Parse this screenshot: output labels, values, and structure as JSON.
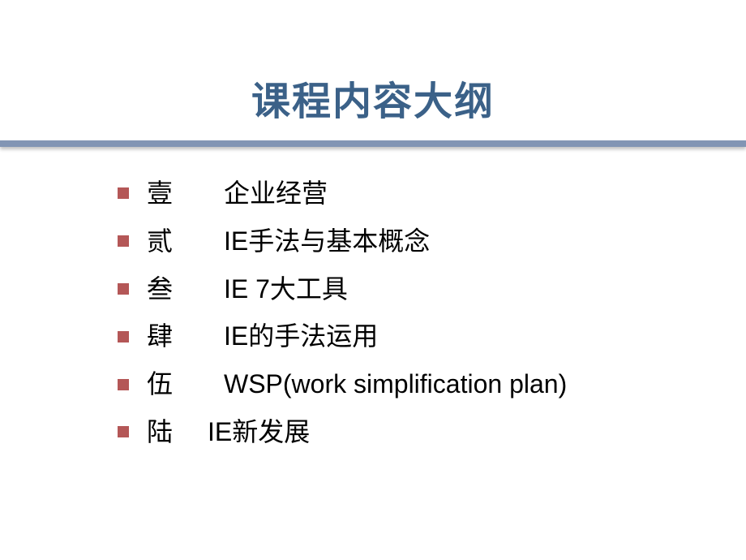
{
  "slide": {
    "title": "课程内容大纲",
    "title_color": "#3b6188",
    "title_fontsize": 48,
    "divider_color": "#8295b4",
    "bullet_color": "#b45757",
    "text_color": "#000000",
    "text_fontsize": 32,
    "background_color": "#ffffff",
    "items": [
      {
        "number": "壹",
        "text": "企业经营",
        "short_gap": false
      },
      {
        "number": "贰",
        "text": "IE手法与基本概念",
        "short_gap": false
      },
      {
        "number": "叁",
        "text": "IE 7大工具",
        "short_gap": false
      },
      {
        "number": "肆",
        "text": "IE的手法运用",
        "short_gap": false
      },
      {
        "number": "伍",
        "text": "WSP(work simplification plan)",
        "short_gap": false
      },
      {
        "number": "陆",
        "text": "IE新发展",
        "short_gap": true
      }
    ]
  }
}
